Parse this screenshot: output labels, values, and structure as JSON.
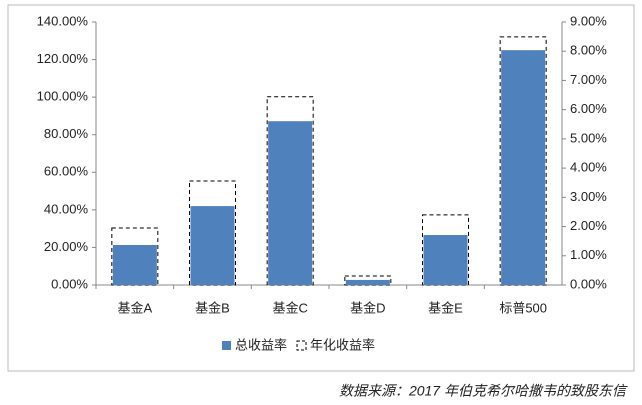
{
  "chart_data": {
    "type": "bar",
    "categories": [
      "基金A",
      "基金B",
      "基金C",
      "基金D",
      "基金E",
      "标普500"
    ],
    "series": [
      {
        "name": "总收益率",
        "color": "#4f81bd",
        "axis": "y",
        "style": "solid",
        "values": [
          21.3,
          42,
          87.2,
          2.7,
          26.6,
          125
        ]
      },
      {
        "name": "年化收益率",
        "color": "#000000",
        "axis": "y2",
        "style": "dashed",
        "values": [
          1.95,
          3.56,
          6.44,
          0.31,
          2.4,
          8.49
        ]
      }
    ],
    "ylim": [
      0,
      140
    ],
    "yticks": [
      {
        "value": 0,
        "label": "0.00%"
      },
      {
        "value": 20,
        "label": "20.00%"
      },
      {
        "value": 40,
        "label": "40.00%"
      },
      {
        "value": 60,
        "label": "60.00%"
      },
      {
        "value": 80,
        "label": "80.00%"
      },
      {
        "value": 100,
        "label": "100.00%"
      },
      {
        "value": 120,
        "label": "120.00%"
      },
      {
        "value": 140,
        "label": "140.00%"
      }
    ],
    "y2lim": [
      0,
      9
    ],
    "y2ticks": [
      {
        "value": 0,
        "label": "0.00%"
      },
      {
        "value": 1,
        "label": "1.00%"
      },
      {
        "value": 2,
        "label": "2.00%"
      },
      {
        "value": 3,
        "label": "3.00%"
      },
      {
        "value": 4,
        "label": "4.00%"
      },
      {
        "value": 5,
        "label": "5.00%"
      },
      {
        "value": 6,
        "label": "6.00%"
      },
      {
        "value": 7,
        "label": "7.00%"
      },
      {
        "value": 8,
        "label": "8.00%"
      },
      {
        "value": 9,
        "label": "9.00%"
      }
    ],
    "legend": "bottom",
    "source": "数据来源：2017 年伯克希尔哈撒韦的致股东信"
  }
}
